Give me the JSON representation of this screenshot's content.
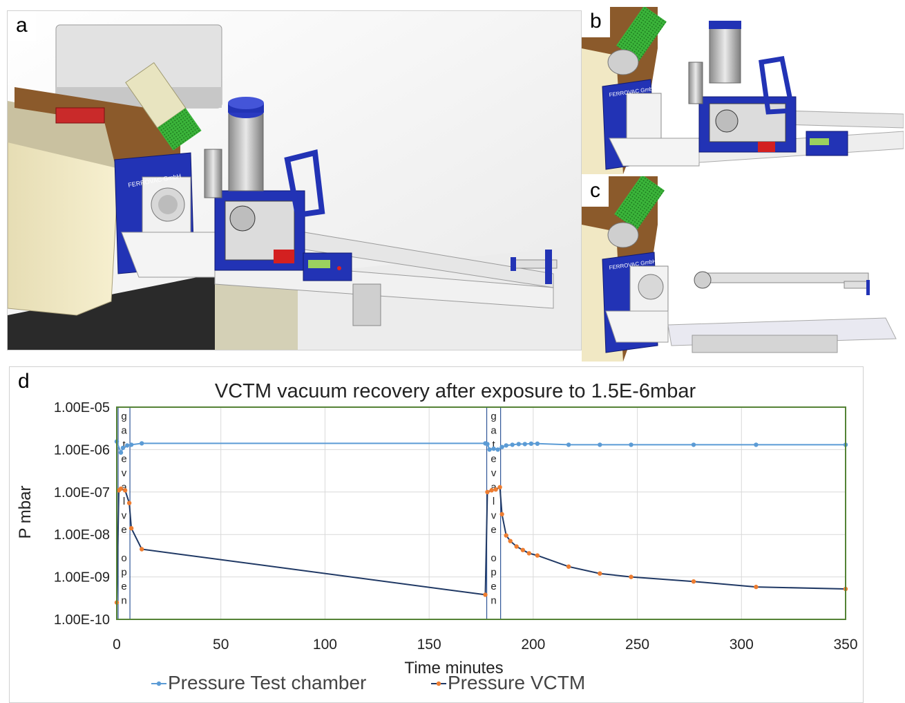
{
  "panels": {
    "a": {
      "label": "a",
      "brand_text": "FERROVAC GmbH"
    },
    "b": {
      "label": "b",
      "brand_text": "FERROVAC GmbH"
    },
    "c": {
      "label": "c",
      "brand_text": "FERROVAC GmbH"
    },
    "d": {
      "label": "d"
    }
  },
  "colors": {
    "instrument_blue": "#2233b5",
    "green_head": "#3fb23a",
    "series_test_chamber": "#5b9bd5",
    "series_vctm_line": "#1f3864",
    "series_vctm_marker": "#ed7d31",
    "plot_border": "#548235"
  },
  "chart_data": {
    "type": "line",
    "title": "VCTM vacuum recovery after exposure to 1.5E-6mbar",
    "xlabel": "Time minutes",
    "ylabel": "P mbar",
    "x_ticks": [
      "0",
      "50",
      "100",
      "150",
      "200",
      "250",
      "300",
      "350"
    ],
    "y_ticks": [
      "1.00E-05",
      "1.00E-06",
      "1.00E-07",
      "1.00E-08",
      "1.00E-09",
      "1.00E-10"
    ],
    "xlim": [
      0,
      350
    ],
    "ylim": [
      1e-10,
      1e-05
    ],
    "y_scale": "log",
    "grid": true,
    "legend": "bottom",
    "annotations": [
      {
        "text": "gate valve open",
        "x_range": [
          1,
          6
        ]
      },
      {
        "text": "gate valve open",
        "x_range": [
          178,
          184
        ]
      }
    ],
    "series": [
      {
        "name": "Pressure Test chamber",
        "color": "#5b9bd5",
        "points": [
          [
            0,
            1.55e-06
          ],
          [
            2,
            8.5e-07
          ],
          [
            3,
            1.1e-06
          ],
          [
            5,
            1.25e-06
          ],
          [
            7,
            1.3e-06
          ],
          [
            12,
            1.4e-06
          ],
          [
            177,
            1.4e-06
          ],
          [
            178,
            1.35e-06
          ],
          [
            179,
            1e-06
          ],
          [
            181,
            1.05e-06
          ],
          [
            183,
            1e-06
          ],
          [
            185,
            1.15e-06
          ],
          [
            187,
            1.25e-06
          ],
          [
            190,
            1.3e-06
          ],
          [
            193,
            1.35e-06
          ],
          [
            196,
            1.35e-06
          ],
          [
            199,
            1.38e-06
          ],
          [
            202,
            1.38e-06
          ],
          [
            217,
            1.3e-06
          ],
          [
            232,
            1.3e-06
          ],
          [
            247,
            1.3e-06
          ],
          [
            277,
            1.3e-06
          ],
          [
            307,
            1.3e-06
          ],
          [
            350,
            1.3e-06
          ]
        ]
      },
      {
        "name": "Pressure VCTM",
        "color": "#1f3864",
        "marker_color": "#ed7d31",
        "points": [
          [
            0,
            2.5e-10
          ],
          [
            1,
            1.1e-07
          ],
          [
            2,
            1.2e-07
          ],
          [
            4,
            1.1e-07
          ],
          [
            6,
            5.5e-08
          ],
          [
            7,
            1.4e-08
          ],
          [
            12,
            4.5e-09
          ],
          [
            177,
            3.8e-10
          ],
          [
            178,
            1e-07
          ],
          [
            180,
            1.1e-07
          ],
          [
            182,
            1.15e-07
          ],
          [
            184,
            1.3e-07
          ],
          [
            185,
            3e-08
          ],
          [
            187,
            9.5e-09
          ],
          [
            189,
            7e-09
          ],
          [
            192,
            5.2e-09
          ],
          [
            195,
            4.3e-09
          ],
          [
            198,
            3.6e-09
          ],
          [
            202,
            3.2e-09
          ],
          [
            217,
            1.75e-09
          ],
          [
            232,
            1.2e-09
          ],
          [
            247,
            1e-09
          ],
          [
            277,
            7.8e-10
          ],
          [
            307,
            5.8e-10
          ],
          [
            350,
            5.2e-10
          ]
        ]
      }
    ]
  }
}
